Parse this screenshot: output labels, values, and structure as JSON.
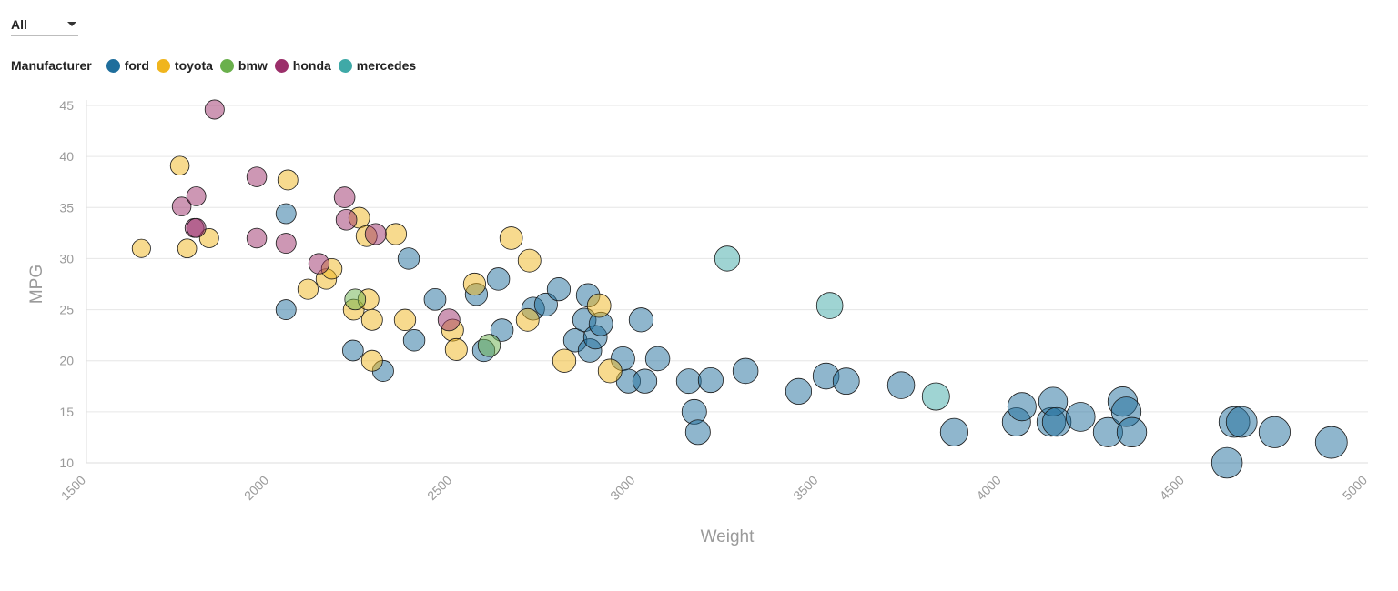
{
  "filter": {
    "selected": "All"
  },
  "legend": {
    "title": "Manufacturer",
    "items": [
      {
        "key": "ford",
        "label": "ford",
        "color": "#1f6e9c"
      },
      {
        "key": "toyota",
        "label": "toyota",
        "color": "#f0b51e"
      },
      {
        "key": "bmw",
        "label": "bmw",
        "color": "#6ab04c"
      },
      {
        "key": "honda",
        "label": "honda",
        "color": "#9b2f6a"
      },
      {
        "key": "mercedes",
        "label": "mercedes",
        "color": "#3fa9a7"
      }
    ]
  },
  "chart_data": {
    "type": "scatter",
    "title": "",
    "xlabel": "Weight",
    "ylabel": "MPG",
    "xlim": [
      1500,
      5000
    ],
    "ylim": [
      10,
      45
    ],
    "x_ticks": [
      "1500",
      "2000",
      "2500",
      "3000",
      "3500",
      "4000",
      "4500",
      "5000"
    ],
    "y_ticks": [
      "10",
      "15",
      "20",
      "25",
      "30",
      "35",
      "40",
      "45"
    ],
    "grid": "horizontal",
    "point_size_encodes": "Weight",
    "series": [
      {
        "name": "ford",
        "points": [
          [
            2045,
            34.4
          ],
          [
            2045,
            25
          ],
          [
            2380,
            30
          ],
          [
            2228,
            21
          ],
          [
            2310,
            19
          ],
          [
            2395,
            22
          ],
          [
            2452,
            26
          ],
          [
            2565,
            26.5
          ],
          [
            2585,
            21
          ],
          [
            2625,
            28
          ],
          [
            2635,
            23
          ],
          [
            2720,
            25.1
          ],
          [
            2755,
            25.5
          ],
          [
            2790,
            27
          ],
          [
            2835,
            22
          ],
          [
            2860,
            24
          ],
          [
            2870,
            26.4
          ],
          [
            2875,
            21
          ],
          [
            2890,
            22.3
          ],
          [
            2905,
            23.6
          ],
          [
            2965,
            20.2
          ],
          [
            2980,
            18
          ],
          [
            3015,
            24
          ],
          [
            3025,
            18
          ],
          [
            3060,
            20.2
          ],
          [
            3145,
            18
          ],
          [
            3160,
            15
          ],
          [
            3170,
            13
          ],
          [
            3205,
            18.1
          ],
          [
            3300,
            19
          ],
          [
            3445,
            17
          ],
          [
            3520,
            18.5
          ],
          [
            3575,
            18
          ],
          [
            3725,
            17.6
          ],
          [
            3870,
            13
          ],
          [
            4040,
            14
          ],
          [
            4055,
            15.5
          ],
          [
            4135,
            14
          ],
          [
            4140,
            16
          ],
          [
            4150,
            14
          ],
          [
            4215,
            14.5
          ],
          [
            4290,
            13
          ],
          [
            4330,
            16
          ],
          [
            4340,
            15
          ],
          [
            4355,
            13
          ],
          [
            4615,
            10
          ],
          [
            4635,
            14
          ],
          [
            4655,
            14
          ],
          [
            4745,
            13
          ],
          [
            4900,
            12
          ]
        ]
      },
      {
        "name": "toyota",
        "points": [
          [
            1650,
            31
          ],
          [
            1755,
            39.1
          ],
          [
            1775,
            31
          ],
          [
            1835,
            32
          ],
          [
            2050,
            37.7
          ],
          [
            2105,
            27
          ],
          [
            2155,
            28
          ],
          [
            2170,
            29
          ],
          [
            2230,
            25
          ],
          [
            2245,
            34
          ],
          [
            2265,
            32.2
          ],
          [
            2270,
            26
          ],
          [
            2280,
            24
          ],
          [
            2280,
            20
          ],
          [
            2345,
            32.4
          ],
          [
            2370,
            24
          ],
          [
            2500,
            23
          ],
          [
            2510,
            21.1
          ],
          [
            2560,
            27.5
          ],
          [
            2660,
            32
          ],
          [
            2705,
            24
          ],
          [
            2710,
            29.8
          ],
          [
            2805,
            20
          ],
          [
            2900,
            25.4
          ],
          [
            2930,
            19
          ]
        ]
      },
      {
        "name": "bmw",
        "points": [
          [
            2234,
            26
          ],
          [
            2600,
            21.5
          ]
        ]
      },
      {
        "name": "honda",
        "points": [
          [
            1850,
            44.6
          ],
          [
            1760,
            35.1
          ],
          [
            1800,
            36.1
          ],
          [
            1795,
            33
          ],
          [
            1800,
            33
          ],
          [
            1965,
            38
          ],
          [
            1965,
            32
          ],
          [
            2045,
            31.5
          ],
          [
            2135,
            29.5
          ],
          [
            2205,
            36
          ],
          [
            2210,
            33.8
          ],
          [
            2290,
            32.4
          ],
          [
            2490,
            24
          ]
        ]
      },
      {
        "name": "mercedes",
        "points": [
          [
            3250,
            30
          ],
          [
            3530,
            25.4
          ],
          [
            3820,
            16.5
          ]
        ]
      }
    ]
  }
}
